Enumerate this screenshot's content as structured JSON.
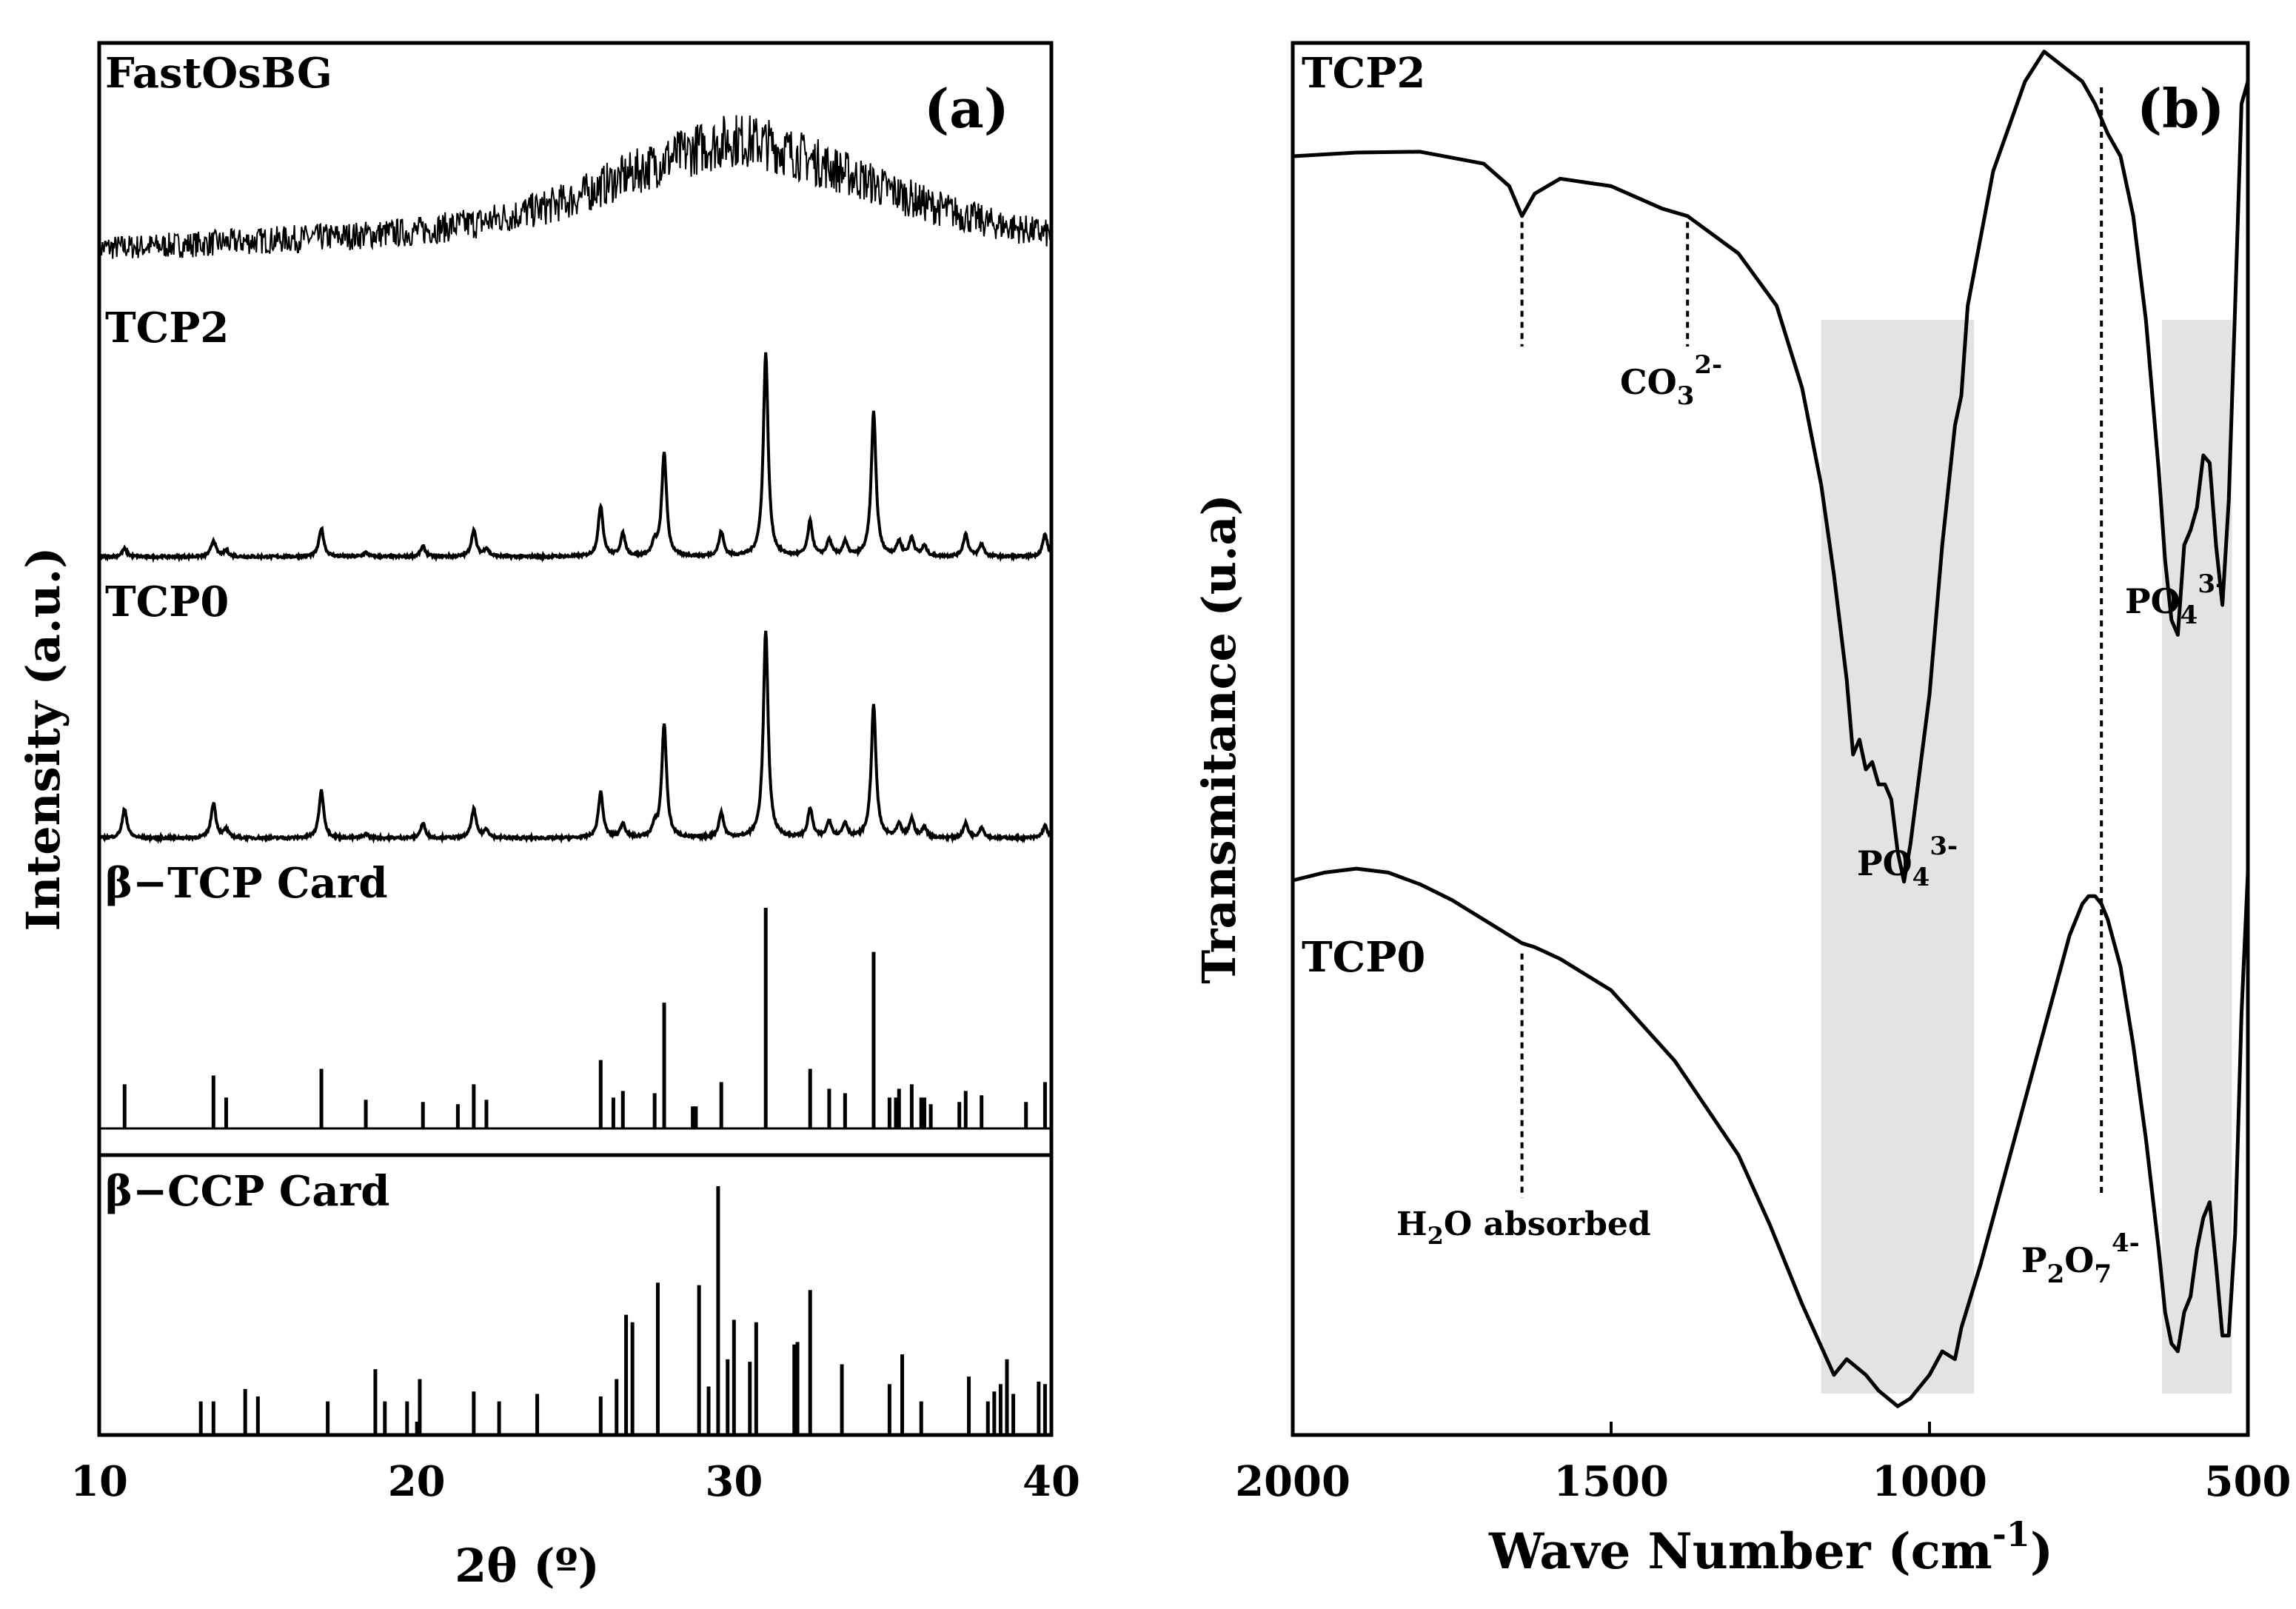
{
  "chart_data": [
    {
      "panel": "(a)",
      "type": "line",
      "xlabel": "2θ (º)",
      "ylabel": "Intensity (a.u.)",
      "xlim": [
        10,
        40
      ],
      "x_ticks": [
        10,
        20,
        30,
        40
      ],
      "series": [
        {
          "name": "FastOsBG",
          "kind": "amorphous-halo",
          "x": [
            10,
            12,
            14,
            16,
            18,
            20,
            22,
            24,
            25,
            26,
            28,
            29,
            30,
            31,
            32,
            34,
            36,
            38,
            40
          ],
          "y": [
            0.02,
            0.04,
            0.07,
            0.1,
            0.13,
            0.17,
            0.25,
            0.38,
            0.47,
            0.6,
            0.83,
            0.93,
            1.0,
            0.96,
            0.86,
            0.64,
            0.42,
            0.25,
            0.14
          ]
        },
        {
          "name": "TCP2",
          "kind": "diffractogram",
          "peaks": [
            {
              "x": 10.8,
              "y": 0.04
            },
            {
              "x": 13.6,
              "y": 0.08
            },
            {
              "x": 14.0,
              "y": 0.03
            },
            {
              "x": 17.0,
              "y": 0.14
            },
            {
              "x": 18.4,
              "y": 0.02
            },
            {
              "x": 20.2,
              "y": 0.05
            },
            {
              "x": 21.8,
              "y": 0.13
            },
            {
              "x": 22.2,
              "y": 0.04
            },
            {
              "x": 25.8,
              "y": 0.25
            },
            {
              "x": 26.5,
              "y": 0.11
            },
            {
              "x": 27.5,
              "y": 0.06
            },
            {
              "x": 27.8,
              "y": 0.51
            },
            {
              "x": 29.6,
              "y": 0.12
            },
            {
              "x": 31.0,
              "y": 1.0
            },
            {
              "x": 32.4,
              "y": 0.17
            },
            {
              "x": 33.0,
              "y": 0.08
            },
            {
              "x": 33.5,
              "y": 0.07
            },
            {
              "x": 34.4,
              "y": 0.71
            },
            {
              "x": 35.2,
              "y": 0.07
            },
            {
              "x": 35.6,
              "y": 0.09
            },
            {
              "x": 36.0,
              "y": 0.05
            },
            {
              "x": 37.3,
              "y": 0.11
            },
            {
              "x": 37.8,
              "y": 0.06
            },
            {
              "x": 39.8,
              "y": 0.11
            }
          ]
        },
        {
          "name": "TCP0",
          "kind": "diffractogram",
          "peaks": [
            {
              "x": 10.8,
              "y": 0.14
            },
            {
              "x": 13.6,
              "y": 0.17
            },
            {
              "x": 14.0,
              "y": 0.04
            },
            {
              "x": 17.0,
              "y": 0.23
            },
            {
              "x": 18.4,
              "y": 0.02
            },
            {
              "x": 20.2,
              "y": 0.07
            },
            {
              "x": 21.8,
              "y": 0.14
            },
            {
              "x": 22.2,
              "y": 0.04
            },
            {
              "x": 25.8,
              "y": 0.22
            },
            {
              "x": 26.5,
              "y": 0.07
            },
            {
              "x": 27.5,
              "y": 0.05
            },
            {
              "x": 27.8,
              "y": 0.55
            },
            {
              "x": 29.6,
              "y": 0.12
            },
            {
              "x": 31.0,
              "y": 1.0
            },
            {
              "x": 32.4,
              "y": 0.14
            },
            {
              "x": 33.0,
              "y": 0.08
            },
            {
              "x": 33.5,
              "y": 0.07
            },
            {
              "x": 34.4,
              "y": 0.64
            },
            {
              "x": 35.2,
              "y": 0.06
            },
            {
              "x": 35.6,
              "y": 0.09
            },
            {
              "x": 36.0,
              "y": 0.05
            },
            {
              "x": 37.3,
              "y": 0.07
            },
            {
              "x": 37.8,
              "y": 0.05
            },
            {
              "x": 39.8,
              "y": 0.06
            }
          ]
        },
        {
          "name": "β−TCP Card",
          "kind": "stick-pattern",
          "x": [
            10.8,
            13.6,
            14.0,
            17.0,
            18.4,
            20.2,
            21.3,
            21.8,
            22.2,
            25.8,
            26.2,
            26.5,
            27.5,
            27.8,
            28.7,
            28.8,
            29.6,
            31.0,
            32.4,
            33.0,
            33.5,
            34.4,
            34.9,
            35.1,
            35.2,
            35.6,
            35.9,
            36.0,
            36.2,
            37.1,
            37.3,
            37.8,
            39.2,
            39.8
          ],
          "y": [
            0.2,
            0.24,
            0.14,
            0.27,
            0.13,
            0.12,
            0.11,
            0.2,
            0.13,
            0.31,
            0.14,
            0.17,
            0.16,
            0.57,
            0.1,
            0.1,
            0.21,
            1.0,
            0.27,
            0.18,
            0.16,
            0.8,
            0.14,
            0.14,
            0.18,
            0.2,
            0.14,
            0.14,
            0.11,
            0.12,
            0.17,
            0.15,
            0.12,
            0.21
          ]
        },
        {
          "name": "β−CCP Card",
          "kind": "stick-pattern",
          "x": [
            13.2,
            13.6,
            14.6,
            15.0,
            17.2,
            18.7,
            19.0,
            19.7,
            20.1,
            21.8,
            22.6,
            23.8,
            25.8,
            26.3,
            26.6,
            26.8,
            27.6,
            28.9,
            29.2,
            29.5,
            29.8,
            30.0,
            30.5,
            30.7,
            31.9,
            32.0,
            32.4,
            33.4,
            34.9,
            35.3,
            35.9,
            37.4,
            38.0,
            38.2,
            38.4,
            38.6,
            38.8,
            39.6,
            39.8,
            40.0
          ],
          "y": [
            0.13,
            0.13,
            0.18,
            0.15,
            0.13,
            0.26,
            0.13,
            0.13,
            0.22,
            0.17,
            0.13,
            0.16,
            0.15,
            0.22,
            0.48,
            0.45,
            0.61,
            0.6,
            0.19,
            1.0,
            0.3,
            0.46,
            0.29,
            0.45,
            0.36,
            0.37,
            0.58,
            0.28,
            0.2,
            0.32,
            0.13,
            0.23,
            0.13,
            0.17,
            0.2,
            0.3,
            0.16,
            0.21,
            0.2,
            0.17
          ]
        }
      ]
    },
    {
      "panel": "(b)",
      "type": "line",
      "xlabel": "Wave Number (cm-1)",
      "xlabel_main": "Wave Number (cm",
      "xlabel_sup": "-1",
      "xlabel_close": ")",
      "ylabel": "Transmitance (u.a)",
      "xlim": [
        2000,
        500
      ],
      "x_ticks": [
        2000,
        1500,
        1000,
        500
      ],
      "shaded_bands": [
        {
          "from": 1170,
          "to": 930,
          "label": "PO4 3-"
        },
        {
          "from": 635,
          "to": 525,
          "label": "PO4 3-"
        }
      ],
      "series": [
        {
          "name": "TCP2",
          "x": [
            2000,
            1900,
            1800,
            1700,
            1660,
            1640,
            1620,
            1580,
            1500,
            1420,
            1380,
            1300,
            1240,
            1200,
            1170,
            1150,
            1130,
            1120,
            1110,
            1100,
            1090,
            1080,
            1070,
            1060,
            1050,
            1040,
            1030,
            1000,
            980,
            960,
            950,
            940,
            900,
            850,
            820,
            790,
            760,
            740,
            720,
            700,
            680,
            660,
            640,
            630,
            620,
            610,
            600,
            590,
            580,
            570,
            560,
            550,
            540,
            530,
            520,
            510,
            500
          ],
          "y": [
            0.7,
            0.705,
            0.706,
            0.69,
            0.66,
            0.62,
            0.65,
            0.67,
            0.66,
            0.63,
            0.62,
            0.57,
            0.5,
            0.39,
            0.26,
            0.14,
            0.0,
            -0.1,
            -0.08,
            -0.12,
            -0.11,
            -0.14,
            -0.14,
            -0.16,
            -0.23,
            -0.27,
            -0.22,
            -0.02,
            0.18,
            0.34,
            0.38,
            0.5,
            0.68,
            0.8,
            0.84,
            0.82,
            0.8,
            0.77,
            0.73,
            0.7,
            0.62,
            0.48,
            0.28,
            0.16,
            0.08,
            0.06,
            0.18,
            0.2,
            0.23,
            0.3,
            0.29,
            0.18,
            0.1,
            0.24,
            0.5,
            0.77,
            0.8
          ]
        },
        {
          "name": "TCP0",
          "x": [
            2000,
            1950,
            1900,
            1850,
            1800,
            1750,
            1700,
            1660,
            1640,
            1620,
            1580,
            1500,
            1400,
            1300,
            1250,
            1200,
            1150,
            1130,
            1100,
            1080,
            1050,
            1030,
            1000,
            980,
            960,
            950,
            920,
            880,
            840,
            800,
            780,
            760,
            750,
            740,
            730,
            720,
            700,
            680,
            660,
            640,
            630,
            620,
            610,
            600,
            590,
            580,
            570,
            560,
            550,
            540,
            530,
            520,
            510,
            500
          ],
          "y": [
            0.65,
            0.66,
            0.665,
            0.66,
            0.645,
            0.625,
            0.6,
            0.58,
            0.57,
            0.565,
            0.55,
            0.51,
            0.42,
            0.3,
            0.21,
            0.11,
            0.02,
            0.04,
            0.02,
            0.0,
            -0.02,
            -0.01,
            0.02,
            0.05,
            0.04,
            0.08,
            0.16,
            0.28,
            0.4,
            0.52,
            0.58,
            0.62,
            0.63,
            0.63,
            0.62,
            0.6,
            0.54,
            0.44,
            0.32,
            0.18,
            0.1,
            0.06,
            0.05,
            0.1,
            0.12,
            0.18,
            0.22,
            0.24,
            0.16,
            0.07,
            0.07,
            0.2,
            0.48,
            0.66
          ]
        }
      ],
      "annotations": [
        {
          "text": "CO3 2-",
          "x": 1380
        },
        {
          "text": "H2O absorbed",
          "x": 1640
        },
        {
          "text": "P2O7 4-",
          "x": 730
        }
      ]
    }
  ],
  "labels": {
    "panel_a_tag": "(a)",
    "panel_b_tag": "(b)",
    "fastosbg": "FastOsBG",
    "tcp2_a": "TCP2",
    "tcp0_a": "TCP0",
    "btcp_card": "β−TCP Card",
    "bccp_card": "β−CCP Card",
    "tcp2_b": "TCP2",
    "tcp0_b": "TCP0",
    "co3_base": "CO",
    "co3_sub": "3",
    "co3_sup": "2-",
    "po4_base": "PO",
    "po4_sub": "4",
    "po4_sup": "3-",
    "h2o_base": "H",
    "h2o_sub": "2",
    "h2o_rest": "O absorbed",
    "p2o7_p": "P",
    "p2o7_sub1": "2",
    "p2o7_o": "O",
    "p2o7_sub2": "7",
    "p2o7_sup": "4-"
  }
}
